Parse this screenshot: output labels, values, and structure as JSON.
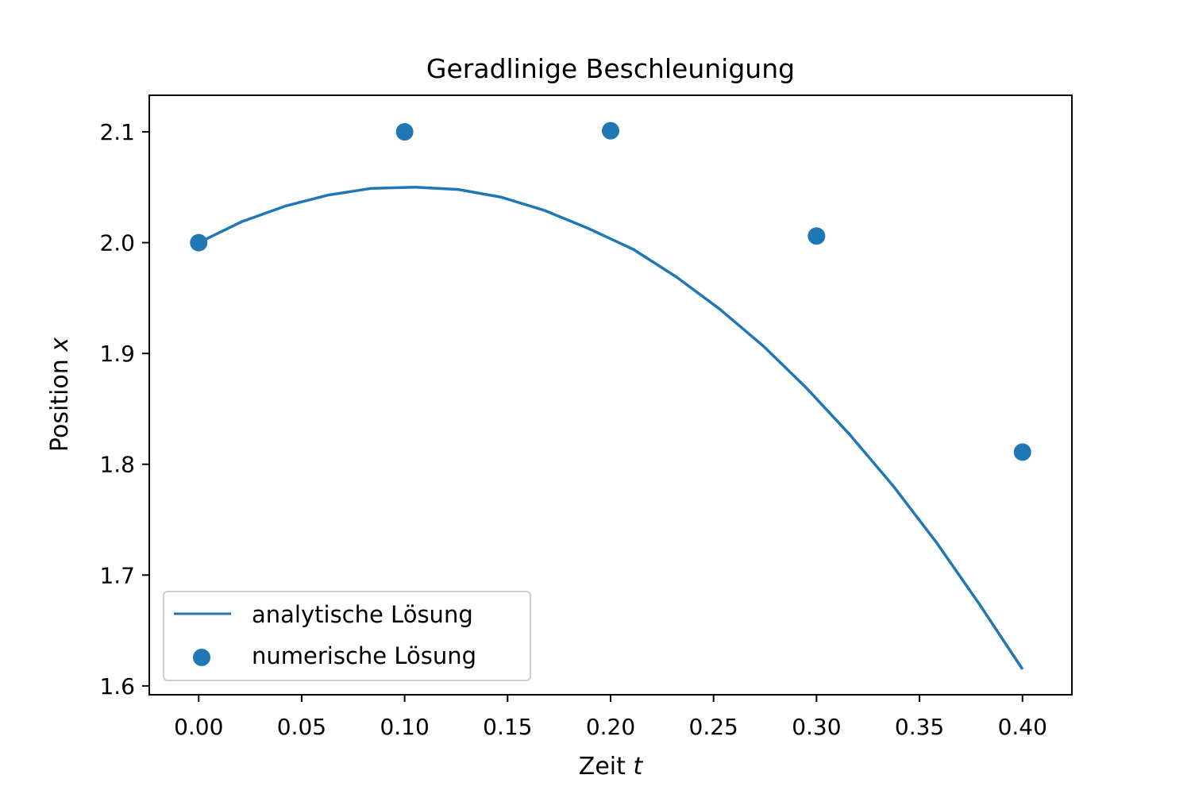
{
  "chart_data": {
    "type": "scatter",
    "title": "Geradlinige Beschleunigung",
    "xlabel": "Zeit",
    "xlabel_var": "t",
    "ylabel": "Position",
    "ylabel_var": "x",
    "xlim": [
      -0.024,
      0.424
    ],
    "ylim": [
      1.592,
      2.133
    ],
    "x_ticks": [
      0.0,
      0.05,
      0.1,
      0.15,
      0.2,
      0.25,
      0.3,
      0.35,
      0.4
    ],
    "x_tick_labels": [
      "0.00",
      "0.05",
      "0.10",
      "0.15",
      "0.20",
      "0.25",
      "0.30",
      "0.35",
      "0.40"
    ],
    "y_ticks": [
      1.6,
      1.7,
      1.8,
      1.9,
      2.0,
      2.1
    ],
    "y_tick_labels": [
      "1.6",
      "1.7",
      "1.8",
      "1.9",
      "2.0",
      "2.1"
    ],
    "grid": false,
    "legend_position": "lower-left",
    "series": [
      {
        "name": "analytische Lösung",
        "kind": "line",
        "color": "#1f77b4",
        "x": [
          0.0,
          0.021,
          0.042,
          0.063,
          0.084,
          0.105,
          0.126,
          0.147,
          0.168,
          0.189,
          0.211,
          0.232,
          0.253,
          0.274,
          0.295,
          0.316,
          0.337,
          0.358,
          0.379,
          0.4
        ],
        "y": [
          2.0,
          2.019,
          2.033,
          2.043,
          2.049,
          2.05,
          2.048,
          2.041,
          2.029,
          2.013,
          1.994,
          1.969,
          1.94,
          1.907,
          1.869,
          1.827,
          1.781,
          1.73,
          1.674,
          1.615
        ]
      },
      {
        "name": "numerische Lösung",
        "kind": "scatter",
        "color": "#1f77b4",
        "x": [
          0.0,
          0.1,
          0.2,
          0.3,
          0.4
        ],
        "y": [
          2.0,
          2.1,
          2.101,
          2.006,
          1.811
        ]
      }
    ]
  }
}
